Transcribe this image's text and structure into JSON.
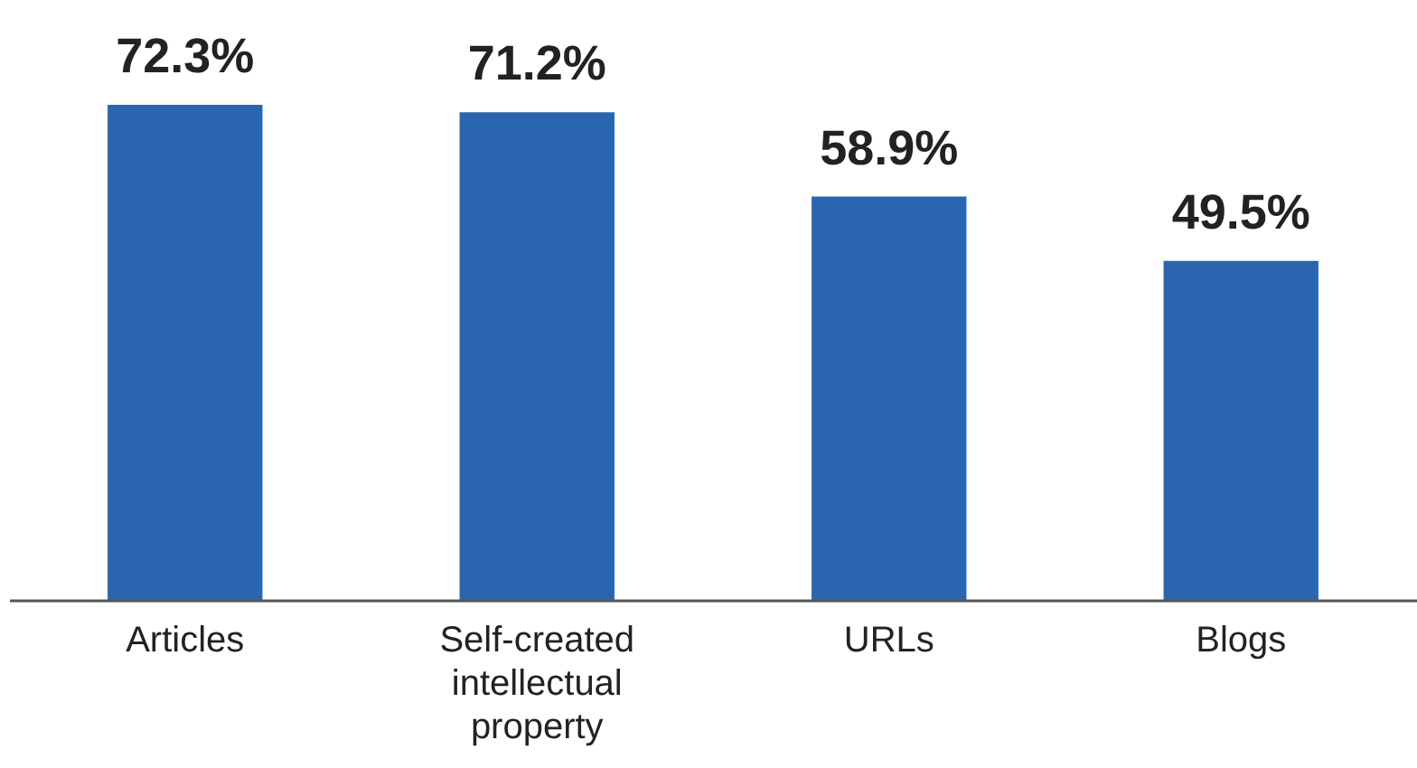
{
  "chart_data": {
    "type": "bar",
    "categories": [
      "Articles",
      "Self-created intellectual property",
      "URLs",
      "Blogs"
    ],
    "series": [
      {
        "color": "#2a66b0",
        "values": [
          72.3,
          71.2,
          58.9,
          49.5
        ],
        "value_labels": [
          "72.3%",
          "71.2%",
          "58.9%",
          "49.5%"
        ]
      }
    ],
    "grid": false
  }
}
